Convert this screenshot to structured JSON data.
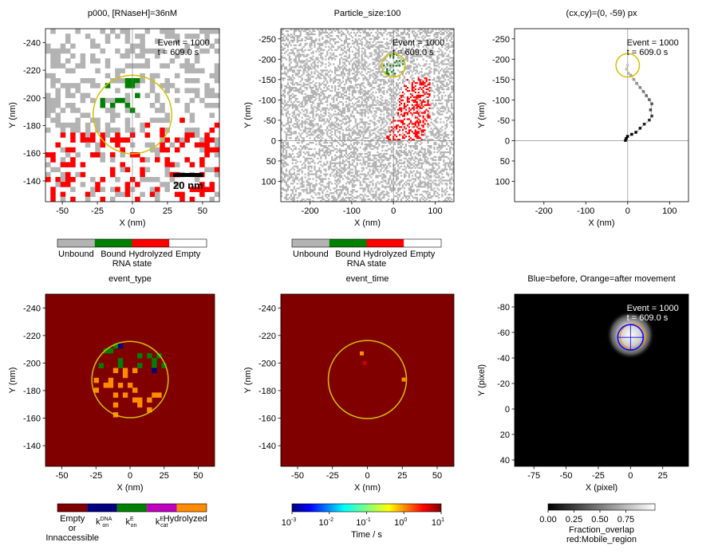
{
  "colors": {
    "unbound": "#b3b3b3",
    "bound": "#008000",
    "hydrolyzed": "#ff0000",
    "empty": "#ffffff",
    "dark_red": "#800000",
    "navy": "#000080",
    "magenta": "#bf00bf",
    "orange": "#ff8c00",
    "circle": "#d4c000"
  },
  "chart_data": [
    {
      "type": "heatmap",
      "title": "p000, [RNaseH]=36nM",
      "xlabel": "X (nm)",
      "ylabel": "Y (nm)",
      "xlim": [
        -62,
        62
      ],
      "ylim": [
        -250,
        -125
      ],
      "xticks": [
        -50,
        -25,
        0,
        25,
        50
      ],
      "yticks": [
        -240,
        -220,
        -200,
        -180,
        -160,
        -140
      ],
      "annotation": [
        "Event = 1000",
        "t = 609.0 s"
      ],
      "scale_bar": "20 nm",
      "circle": {
        "cx": 0,
        "cy": -188,
        "r": 28
      },
      "crosshair": [
        0,
        -188
      ]
    },
    {
      "type": "heatmap",
      "title": "Particle_size:100",
      "xlabel": "X (nm)",
      "ylabel": "Y (nm)",
      "xlim": [
        -270,
        145
      ],
      "ylim": [
        -275,
        150
      ],
      "xticks": [
        -200,
        -100,
        0,
        100
      ],
      "yticks": [
        -250,
        -200,
        -150,
        -100,
        -50,
        0,
        50,
        100
      ],
      "annotation": [
        "Event = 1000",
        "t = 609.0 s"
      ],
      "circle": {
        "cx": 0,
        "cy": -185,
        "r": 28
      },
      "crosshair": [
        0,
        0
      ]
    },
    {
      "type": "scatter",
      "title": "(cx,cy)=(0, -59) px",
      "xlabel": "X (nm)",
      "ylabel": "Y (nm)",
      "xlim": [
        -270,
        145
      ],
      "ylim": [
        -275,
        150
      ],
      "xticks": [
        -200,
        -100,
        0,
        100
      ],
      "yticks": [
        -250,
        -200,
        -150,
        -100,
        -50,
        0,
        50,
        100
      ],
      "annotation": [
        "Event = 1000",
        "t = 609.0 s"
      ],
      "circle": {
        "cx": 0,
        "cy": -185,
        "r": 28
      },
      "crosshair": [
        0,
        0
      ],
      "trajectory": [
        [
          0,
          -185
        ],
        [
          -2,
          -175
        ],
        [
          2,
          -165
        ],
        [
          8,
          -160
        ],
        [
          15,
          -150
        ],
        [
          22,
          -140
        ],
        [
          30,
          -130
        ],
        [
          38,
          -120
        ],
        [
          45,
          -110
        ],
        [
          52,
          -100
        ],
        [
          58,
          -90
        ],
        [
          55,
          -75
        ],
        [
          58,
          -60
        ],
        [
          52,
          -50
        ],
        [
          40,
          -40
        ],
        [
          30,
          -30
        ],
        [
          20,
          -20
        ],
        [
          10,
          -15
        ],
        [
          0,
          -10
        ],
        [
          -5,
          0
        ],
        [
          -3,
          -5
        ]
      ]
    },
    {
      "type": "heatmap",
      "title": "event_type",
      "xlabel": "X (nm)",
      "ylabel": "Y (nm)",
      "xlim": [
        -62,
        62
      ],
      "ylim": [
        -250,
        -125
      ],
      "xticks": [
        -50,
        -25,
        0,
        25,
        50
      ],
      "yticks": [
        -240,
        -220,
        -200,
        -180,
        -160,
        -140
      ],
      "circle": {
        "cx": 0,
        "cy": -188,
        "r": 28
      }
    },
    {
      "type": "heatmap",
      "title": "event_time",
      "xlabel": "X (nm)",
      "ylabel": "Y (nm)",
      "xlim": [
        -62,
        62
      ],
      "ylim": [
        -250,
        -125
      ],
      "xticks": [
        -50,
        -25,
        0,
        25,
        50
      ],
      "yticks": [
        -240,
        -220,
        -200,
        -180,
        -160,
        -140
      ],
      "circle": {
        "cx": 0,
        "cy": -188,
        "r": 28
      },
      "cells": [
        [
          -4,
          -207
        ],
        [
          -2,
          -200
        ],
        [
          26,
          -188
        ]
      ]
    },
    {
      "type": "heatmap",
      "title": "Blue=before, Orange=after movement",
      "xlabel": "X (pixel)",
      "ylabel": "Y (pixel)",
      "xlim": [
        -90,
        45
      ],
      "ylim": [
        -90,
        45
      ],
      "xticks": [
        -75,
        -50,
        -25,
        0,
        25
      ],
      "yticks": [
        -80,
        -60,
        -40,
        -20,
        0,
        20,
        40
      ],
      "annotation": [
        "Event = 1000",
        "t = 609.0 s"
      ],
      "blob": {
        "cx": 0,
        "cy": -58,
        "r": 11
      }
    }
  ],
  "colorbars": {
    "rna_state": {
      "labels": [
        "Unbound",
        "Bound",
        "Hydrolyzed",
        "Empty"
      ],
      "title": "RNA state"
    },
    "event_type": {
      "labels": [
        "Empty",
        "or",
        "Innaccessible"
      ],
      "k_labels": [
        "k",
        "k",
        "k"
      ],
      "k_sub": [
        "on",
        "on",
        "cat"
      ],
      "k_sup": [
        "DNA",
        "E",
        "E"
      ],
      "hydrolyzed": "Hydrolyzed"
    },
    "event_time": {
      "ticks": [
        "10",
        "10",
        "10",
        "10",
        "10"
      ],
      "exps": [
        "-3",
        "-2",
        "-1",
        "0",
        "1"
      ],
      "label": "Time / s"
    },
    "overlap": {
      "ticks": [
        "0.00",
        "0.25",
        "0.50",
        "0.75"
      ],
      "label1": "Fraction_overlap",
      "label2": "red:Mobile_region"
    }
  }
}
